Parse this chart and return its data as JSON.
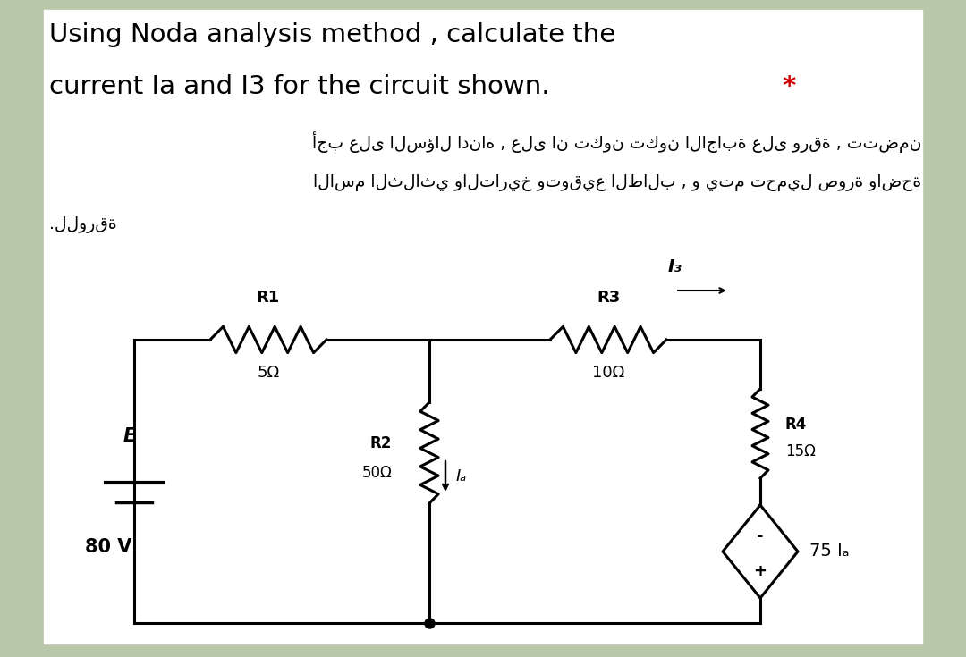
{
  "bg_color": "#b8c8a8",
  "white_bg": "#ffffff",
  "title_line1": "Using Noda analysis method , calculate the",
  "title_line2": "current Ia and I3 for the circuit shown.",
  "title_star": " *",
  "arabic_line1": "أجب على السؤال ادناه , على ان تكون تكون الاجابة على ورقة , تتضمن",
  "arabic_line2": "الاسم الثلاثي والتاريخ وتوقيع الطالب , و يتم تحميل صورة واضحة",
  "arabic_line3": ".للورقة",
  "text_color": "#000000",
  "red_color": "#cc0000"
}
